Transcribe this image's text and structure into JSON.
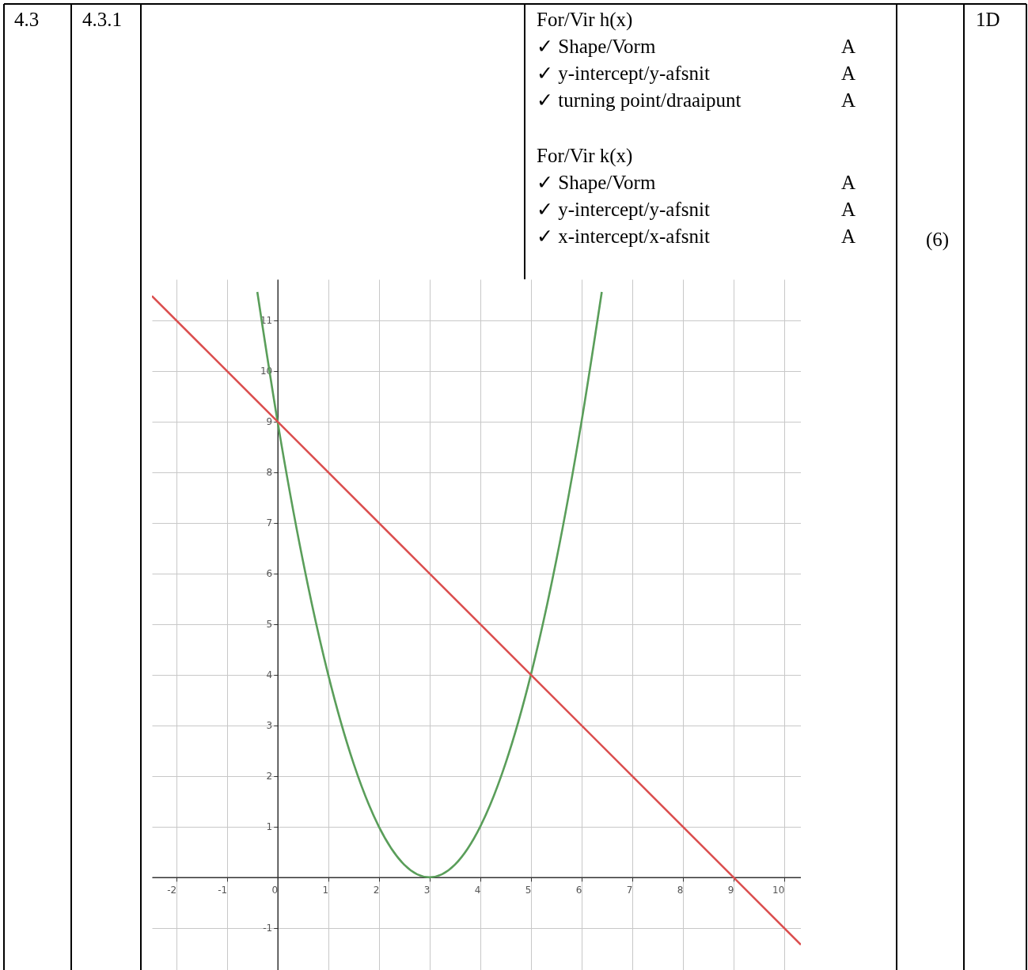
{
  "chart_data": {
    "type": "line",
    "annotations": [
      "4.3",
      "4.3.1",
      "For/Vir h(x)",
      "✓ Shape/Vorm",
      "A",
      "✓ y-intercept/y-afsnit",
      "A",
      "✓ turning point/draaipunt",
      "A",
      "For/Vir k(x)",
      "✓ Shape/Vorm",
      "A",
      "✓ y-intercept/y-afsnit",
      "A",
      "✓ x-intercept/x-afsnit",
      "A",
      "(6)",
      "1D"
    ],
    "series": [
      {
        "color": "#5a9e5a",
        "x": [
          -0.4,
          0,
          0.5,
          1,
          1.5,
          2,
          2.5,
          3,
          3.5,
          4,
          4.5,
          5,
          5.5,
          6,
          6.4
        ],
        "values": [
          11.56,
          9,
          6.25,
          4,
          2.25,
          1,
          0.25,
          0,
          0.25,
          1,
          2.25,
          4,
          6.25,
          9,
          11.56
        ]
      },
      {
        "color": "#db4f4f",
        "x": [
          -2.48,
          0,
          5,
          9,
          10.33
        ],
        "values": [
          11.48,
          9,
          4,
          0,
          -1.33
        ]
      }
    ],
    "xlim": [
      -2.48,
      10.33
    ],
    "ylim": [
      -1.83,
      11.81
    ],
    "xticks": [
      -2,
      -1,
      0,
      1,
      2,
      3,
      4,
      5,
      6,
      7,
      8,
      9,
      10
    ],
    "yticks": [
      -1,
      {
        "value": 0,
        "label": null
      },
      1,
      2,
      3,
      4,
      5,
      6,
      7,
      8,
      9,
      10,
      11
    ],
    "grid": true,
    "marker": "none",
    "line_style": "solid"
  }
}
